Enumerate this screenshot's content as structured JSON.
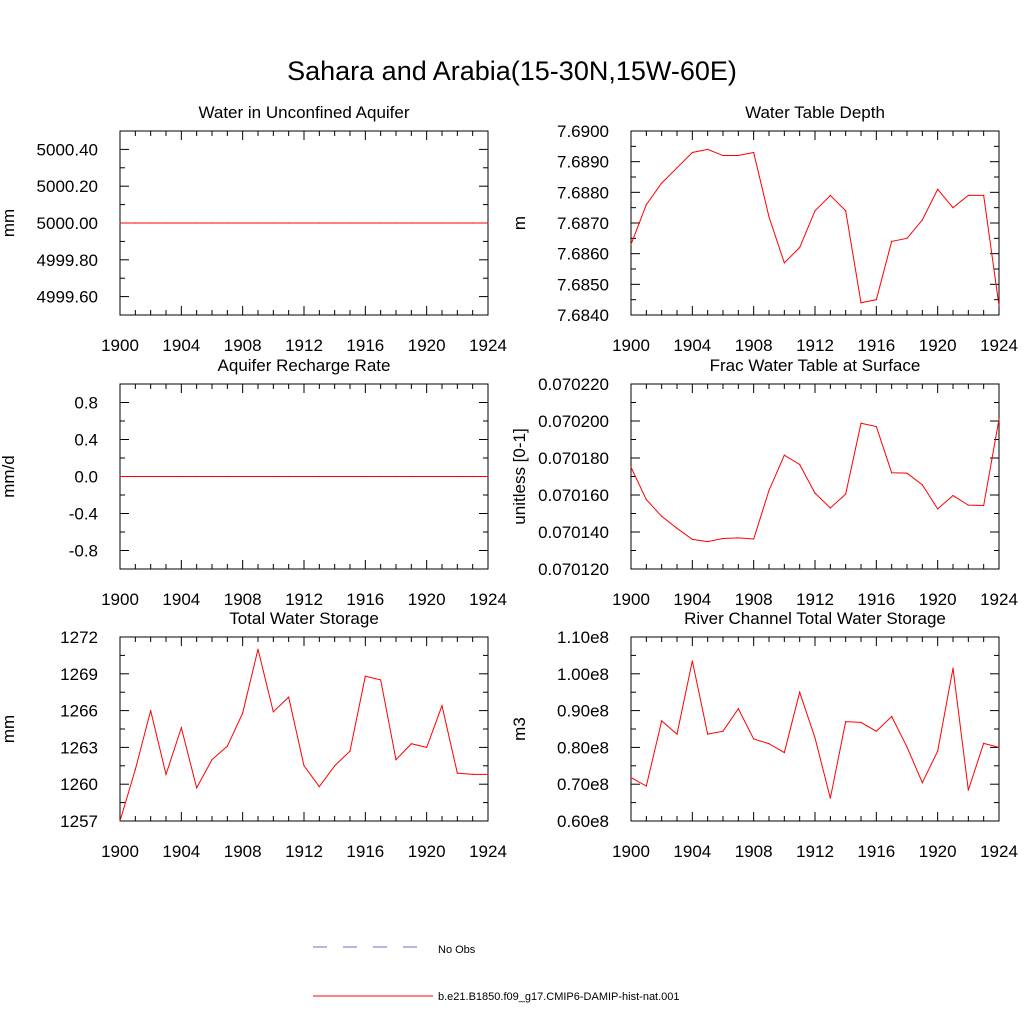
{
  "figure": {
    "title": "Sahara and Arabia(15-30N,15W-60E)",
    "line_color": "#ff0000",
    "obs_color": "#6b6bd6"
  },
  "legend": {
    "entries": [
      {
        "label": "No Obs",
        "style": "dashed",
        "color": "#6b6bd6"
      },
      {
        "label": "b.e21.B1850.f09_g17.CMIP6-DAMIP-hist-nat.001",
        "style": "solid",
        "color": "#ff0000"
      }
    ]
  },
  "chart_data": [
    {
      "type": "line",
      "title": "Water in Unconfined Aquifer",
      "ylabel": "mm",
      "xlim": [
        1900,
        1924
      ],
      "ylim": [
        4999.5,
        5000.5
      ],
      "xticks": [
        "1900",
        "1904",
        "1908",
        "1912",
        "1916",
        "1920",
        "1924"
      ],
      "yticks": [
        4999.6,
        4999.8,
        5000.0,
        5000.2,
        5000.4
      ],
      "ytick_labels": [
        "4999.60",
        "4999.80",
        "5000.00",
        "5000.20",
        "5000.40"
      ],
      "series": [
        {
          "x": [
            1900,
            1901,
            1902,
            1903,
            1904,
            1905,
            1906,
            1907,
            1908,
            1909,
            1910,
            1911,
            1912,
            1913,
            1914,
            1915,
            1916,
            1917,
            1918,
            1919,
            1920,
            1921,
            1922,
            1923,
            1924
          ],
          "values": [
            5000,
            5000,
            5000,
            5000,
            5000,
            5000,
            5000,
            5000,
            5000,
            5000,
            5000,
            5000,
            5000,
            5000,
            5000,
            5000,
            5000,
            5000,
            5000,
            5000,
            5000,
            5000,
            5000,
            5000,
            5000
          ]
        }
      ]
    },
    {
      "type": "line",
      "title": "Water Table Depth",
      "ylabel": "m",
      "xlim": [
        1900,
        1924
      ],
      "ylim": [
        7.684,
        7.69
      ],
      "xticks": [
        "1900",
        "1904",
        "1908",
        "1912",
        "1916",
        "1920",
        "1924"
      ],
      "yticks": [
        7.684,
        7.685,
        7.686,
        7.687,
        7.688,
        7.689,
        7.69
      ],
      "ytick_labels": [
        "7.6840",
        "7.6850",
        "7.6860",
        "7.6870",
        "7.6880",
        "7.6890",
        "7.6900"
      ],
      "series": [
        {
          "x": [
            1900,
            1901,
            1902,
            1903,
            1904,
            1905,
            1906,
            1907,
            1908,
            1909,
            1910,
            1911,
            1912,
            1913,
            1914,
            1915,
            1916,
            1917,
            1918,
            1919,
            1920,
            1921,
            1922,
            1923,
            1924
          ],
          "values": [
            7.6863,
            7.6876,
            7.6883,
            7.6888,
            7.6893,
            7.6894,
            7.6892,
            7.6892,
            7.6893,
            7.6872,
            7.6857,
            7.6862,
            7.6874,
            7.6879,
            7.6874,
            7.6844,
            7.6845,
            7.6864,
            7.6865,
            7.6871,
            7.6881,
            7.6875,
            7.6879,
            7.6879,
            7.6843
          ]
        }
      ]
    },
    {
      "type": "line",
      "title": "Aquifer Recharge Rate",
      "ylabel": "mm/d",
      "xlim": [
        1900,
        1924
      ],
      "ylim": [
        -1.0,
        1.0
      ],
      "xticks": [
        "1900",
        "1904",
        "1908",
        "1912",
        "1916",
        "1920",
        "1924"
      ],
      "yticks": [
        -0.8,
        -0.4,
        0.0,
        0.4,
        0.8
      ],
      "ytick_labels": [
        "-0.8",
        "-0.4",
        "0.0",
        "0.4",
        "0.8"
      ],
      "series": [
        {
          "x": [
            1900,
            1901,
            1902,
            1903,
            1904,
            1905,
            1906,
            1907,
            1908,
            1909,
            1910,
            1911,
            1912,
            1913,
            1914,
            1915,
            1916,
            1917,
            1918,
            1919,
            1920,
            1921,
            1922,
            1923,
            1924
          ],
          "values": [
            0,
            0,
            0,
            0,
            0,
            0,
            0,
            0,
            0,
            0,
            0,
            0,
            0,
            0,
            0,
            0,
            0,
            0,
            0,
            0,
            0,
            0,
            0,
            0,
            0
          ]
        }
      ]
    },
    {
      "type": "line",
      "title": "Frac Water Table at Surface",
      "ylabel": "unitless [0-1]",
      "xlim": [
        1900,
        1924
      ],
      "ylim": [
        0.07012,
        0.07022
      ],
      "xticks": [
        "1900",
        "1904",
        "1908",
        "1912",
        "1916",
        "1920",
        "1924"
      ],
      "yticks": [
        0.07012,
        0.07014,
        0.07016,
        0.07018,
        0.0702,
        0.07022
      ],
      "ytick_labels": [
        "0.070120",
        "0.070140",
        "0.070160",
        "0.070180",
        "0.070200",
        "0.070220"
      ],
      "series": [
        {
          "x": [
            1900,
            1901,
            1902,
            1903,
            1904,
            1905,
            1906,
            1907,
            1908,
            1909,
            1910,
            1911,
            1912,
            1913,
            1914,
            1915,
            1916,
            1917,
            1918,
            1919,
            1920,
            1921,
            1922,
            1923,
            1924
          ],
          "values": [
            0.070175,
            0.0701575,
            0.0701485,
            0.070142,
            0.070136,
            0.0701348,
            0.0701365,
            0.0701368,
            0.0701362,
            0.0701625,
            0.0701815,
            0.0701765,
            0.070161,
            0.070153,
            0.0701605,
            0.0701988,
            0.070197,
            0.070172,
            0.0701718,
            0.0701655,
            0.0701525,
            0.0701597,
            0.0701545,
            0.0701543,
            0.070201
          ]
        }
      ]
    },
    {
      "type": "line",
      "title": "Total Water Storage",
      "ylabel": "mm",
      "xlim": [
        1900,
        1924
      ],
      "ylim": [
        1257,
        1272
      ],
      "xticks": [
        "1900",
        "1904",
        "1908",
        "1912",
        "1916",
        "1920",
        "1924"
      ],
      "yticks": [
        1257,
        1260,
        1263,
        1266,
        1269,
        1272
      ],
      "ytick_labels": [
        "1257",
        "1260",
        "1263",
        "1266",
        "1269",
        "1272"
      ],
      "series": [
        {
          "x": [
            1900,
            1901,
            1902,
            1903,
            1904,
            1905,
            1906,
            1907,
            1908,
            1909,
            1910,
            1911,
            1912,
            1913,
            1914,
            1915,
            1916,
            1917,
            1918,
            1919,
            1920,
            1921,
            1922,
            1923,
            1924
          ],
          "values": [
            1257.0,
            1261.2,
            1266.0,
            1260.8,
            1264.6,
            1259.7,
            1262.0,
            1263.1,
            1265.8,
            1271.0,
            1265.9,
            1267.1,
            1261.5,
            1259.8,
            1261.5,
            1262.7,
            1268.8,
            1268.5,
            1262.0,
            1263.3,
            1263.0,
            1266.4,
            1260.9,
            1260.8,
            1260.8
          ]
        }
      ]
    },
    {
      "type": "line",
      "title": "River Channel Total Water Storage",
      "ylabel": "m3",
      "xlim": [
        1900,
        1924
      ],
      "ylim": [
        60000000,
        110000000
      ],
      "xticks": [
        "1900",
        "1904",
        "1908",
        "1912",
        "1916",
        "1920",
        "1924"
      ],
      "yticks": [
        60000000,
        70000000,
        80000000,
        90000000,
        100000000,
        110000000
      ],
      "ytick_labels": [
        "0.60e8",
        "0.70e8",
        "0.80e8",
        "0.90e8",
        "1.00e8",
        "1.10e8"
      ],
      "series": [
        {
          "x": [
            1900,
            1901,
            1902,
            1903,
            1904,
            1905,
            1906,
            1907,
            1908,
            1909,
            1910,
            1911,
            1912,
            1913,
            1914,
            1915,
            1916,
            1917,
            1918,
            1919,
            1920,
            1921,
            1922,
            1923,
            1924
          ],
          "values": [
            71800000,
            69500000,
            87200000,
            83600000,
            103500000,
            83600000,
            84400000,
            90500000,
            82300000,
            81000000,
            78600000,
            95000000,
            82600000,
            66200000,
            87000000,
            86800000,
            84400000,
            88400000,
            80100000,
            70400000,
            79000000,
            101500000,
            68400000,
            81100000,
            80000000
          ]
        }
      ]
    }
  ]
}
